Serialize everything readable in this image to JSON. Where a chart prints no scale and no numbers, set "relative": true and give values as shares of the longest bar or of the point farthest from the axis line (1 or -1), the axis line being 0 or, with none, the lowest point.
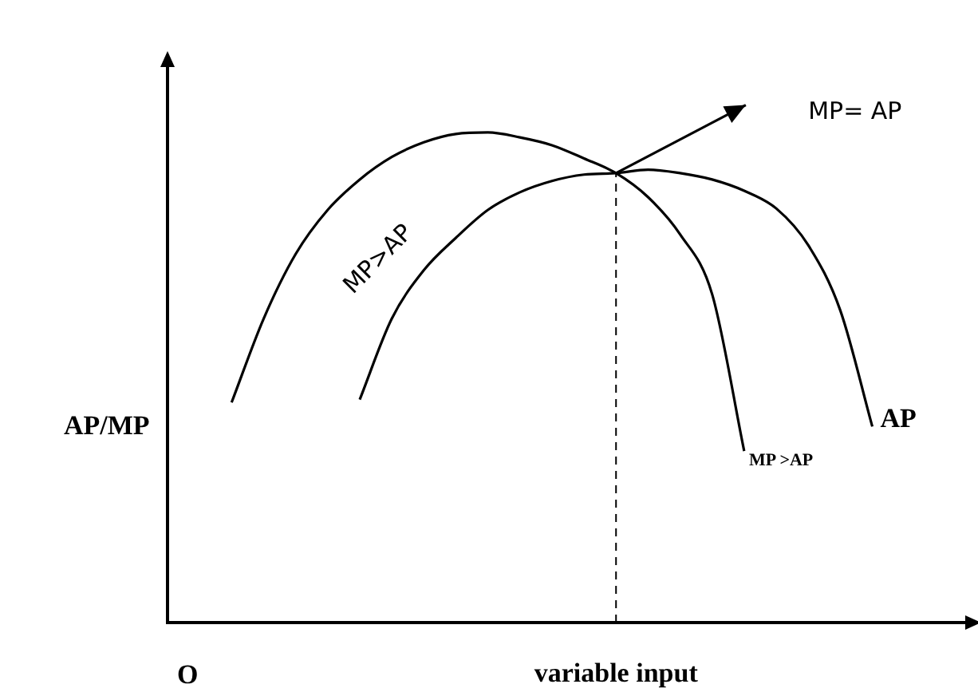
{
  "chart_data": {
    "type": "line",
    "relative": true,
    "xlabel": "variable input",
    "ylabel": "AP/MP",
    "categories": [
      null,
      null,
      null,
      null,
      null,
      null,
      null,
      null,
      null,
      null,
      null,
      null,
      null,
      null,
      null,
      null,
      null,
      null,
      null,
      null,
      null,
      null,
      null,
      null,
      null,
      null
    ],
    "series": [
      {
        "color": "#000000",
        "values": [
          null,
          null,
          0.449,
          0.62,
          0.752,
          0.842,
          0.904,
          0.95,
          0.98,
          0.997,
          1.0,
          0.99,
          0.974,
          0.947,
          0.917,
          0.868,
          0.792,
          0.67,
          0.35,
          null,
          null,
          null,
          null,
          null,
          null,
          null
        ]
      },
      {
        "name": "AP",
        "color": "#000000",
        "values": [
          null,
          null,
          null,
          null,
          null,
          null,
          0.455,
          0.62,
          0.719,
          0.785,
          0.842,
          0.878,
          0.901,
          0.914,
          0.917,
          0.924,
          0.917,
          0.904,
          0.881,
          0.845,
          0.77,
          0.637,
          0.4,
          null,
          null,
          null
        ]
      }
    ],
    "annotations": [
      "MP>AP",
      "MP >AP",
      "MP= AP",
      "O"
    ],
    "legend": false,
    "grid": false,
    "marker": "none",
    "line_style": "solid"
  }
}
